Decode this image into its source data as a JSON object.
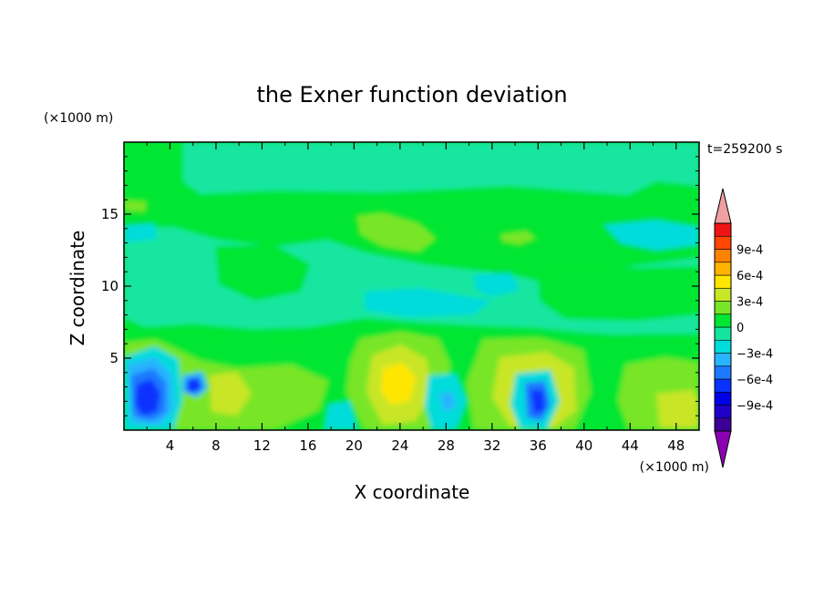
{
  "chart_data": {
    "type": "heatmap",
    "title": "the Exner function deviation",
    "xlabel": "X coordinate",
    "ylabel": "Z coordinate",
    "x_unit": "(×1000 m)",
    "y_unit": "(×1000 m)",
    "time_label": "t=259200 s",
    "xlim": [
      0,
      50
    ],
    "ylim": [
      0,
      20
    ],
    "x_ticks": [
      4,
      8,
      12,
      16,
      20,
      24,
      28,
      32,
      36,
      40,
      44,
      48
    ],
    "y_ticks": [
      5,
      10,
      15
    ],
    "colorbar": {
      "levels": [
        -0.0012,
        -0.00105,
        -0.0009,
        -0.00075,
        -0.0006,
        -0.00045,
        -0.0003,
        -0.00015,
        0,
        0.00015,
        0.0003,
        0.00045,
        0.0006,
        0.00075,
        0.0009,
        0.00105,
        0.0012
      ],
      "colors": [
        "#3c0096",
        "#1e00c8",
        "#0000e6",
        "#0a32ff",
        "#1e78ff",
        "#28b4ff",
        "#00dcdc",
        "#14e6a0",
        "#00e632",
        "#78e628",
        "#c8e628",
        "#ffe600",
        "#ffb400",
        "#ff8200",
        "#ff4600",
        "#f01414"
      ],
      "under_color": "#8c00b4",
      "over_color": "#f0a0a0",
      "tick_labels": [
        "9e-4",
        "6e-4",
        "3e-4",
        "0",
        "−3e-4",
        "−6e-4",
        "−9e-4"
      ]
    },
    "field_background_level": "0 to 1.5e-4 (green)",
    "features": [
      {
        "x": 2,
        "z": 2,
        "value": -0.0008
      },
      {
        "x": 6.2,
        "z": 3.2,
        "value": -0.00065
      },
      {
        "x": 23.8,
        "z": 3.3,
        "value": 0.0006
      },
      {
        "x": 27.8,
        "z": 2.2,
        "value": -0.00035
      },
      {
        "x": 35.8,
        "z": 2,
        "value": -0.00065
      },
      {
        "x": 38.5,
        "z": 3,
        "value": 0.0003
      },
      {
        "x": 31.5,
        "z": 2,
        "value": 0.0003
      },
      {
        "x": 8.5,
        "z": 2,
        "value": 0.00025
      },
      {
        "x": 24,
        "z": 14.5,
        "value": 0.0002
      },
      {
        "x": 44.5,
        "z": 13.6,
        "value": -0.0002
      },
      {
        "x": 28,
        "z": 9.5,
        "value": -0.00015
      },
      {
        "x": 25,
        "z": 17.5,
        "value": -8e-05
      }
    ]
  }
}
